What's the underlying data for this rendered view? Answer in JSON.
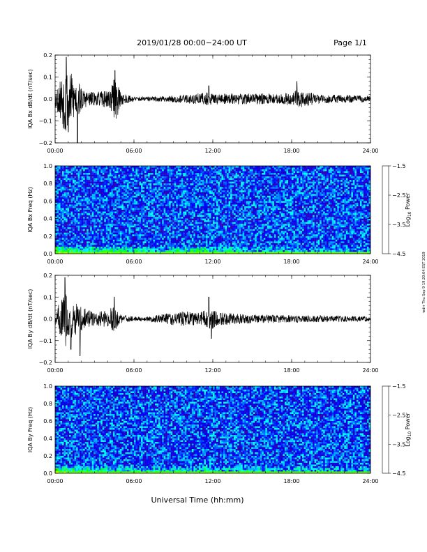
{
  "header": {
    "date_range": "2019/01/28  00:00−24:00 UT",
    "page": "Page 1/1"
  },
  "footer": {
    "xlabel": "Universal Time (hh:mm)"
  },
  "side_note": "wdrr Thu Sep 9 19:20:04 EST 2019",
  "colors": {
    "trace": "#000000",
    "colorscale": [
      "#000000",
      "#4b0082",
      "#0000ff",
      "#00ffff",
      "#00ff00",
      "#ffff00",
      "#ff0000"
    ]
  },
  "chart_data": [
    {
      "id": "bx-timeseries",
      "type": "line",
      "ylabel": "IQA Bx dB/dt (nT/sec)",
      "ylim": [
        -0.2,
        0.2
      ],
      "yticks": [
        "0.2",
        "0.1",
        "0.0",
        "−0.1",
        "−0.2"
      ],
      "xlim": [
        0,
        24
      ],
      "xticks": [
        "00:00",
        "06:00",
        "12:00",
        "18:00",
        "24:00"
      ],
      "envelope": {
        "x_hours": [
          0,
          0.3,
          0.6,
          0.8,
          1.0,
          1.2,
          1.5,
          1.8,
          2.2,
          3.0,
          4.0,
          4.3,
          4.6,
          5.0,
          6.0,
          8.0,
          10.0,
          11.5,
          12.0,
          13.0,
          15.0,
          17.0,
          18.0,
          18.5,
          20.0,
          22.0,
          24.0
        ],
        "amplitude": [
          0.04,
          0.08,
          0.13,
          0.18,
          0.11,
          0.12,
          0.09,
          0.08,
          0.04,
          0.03,
          0.04,
          0.06,
          0.11,
          0.03,
          0.01,
          0.012,
          0.02,
          0.03,
          0.025,
          0.025,
          0.025,
          0.025,
          0.03,
          0.045,
          0.02,
          0.018,
          0.015
        ],
        "spikes": [
          [
            0.85,
            0.19
          ],
          [
            1.0,
            -0.15
          ],
          [
            1.7,
            -0.21
          ],
          [
            4.55,
            0.13
          ],
          [
            11.7,
            0.06
          ],
          [
            18.4,
            0.08
          ]
        ]
      }
    },
    {
      "id": "bx-spectrogram",
      "type": "heatmap",
      "ylabel": "IQA Bx Freq (Hz)",
      "ylim": [
        0.0,
        1.0
      ],
      "yticks": [
        "1.0",
        "0.8",
        "0.6",
        "0.4",
        "0.2",
        "0.0"
      ],
      "xlim": [
        0,
        24
      ],
      "xticks": [
        "00:00",
        "06:00",
        "12:00",
        "18:00",
        "24:00"
      ],
      "colorbar": {
        "label": "Log10 Power",
        "label_base": "Log",
        "label_sub": "10",
        "label_rest": " Power",
        "range": [
          -4.5,
          -1.5
        ],
        "ticks": [
          "−1.5",
          "−2.5",
          "−3.5",
          "−4.5"
        ]
      },
      "background_level": -3.4,
      "low_freq_enhancement": {
        "x_hours": [
          0.5,
          1.0,
          2.0,
          4.3,
          8.0,
          10.0,
          11.5,
          12.0,
          15.0,
          18.5,
          22.0
        ],
        "strength": [
          0.9,
          0.8,
          0.5,
          0.6,
          0.3,
          0.5,
          0.6,
          0.4,
          0.3,
          0.3,
          0.2
        ]
      }
    },
    {
      "id": "by-timeseries",
      "type": "line",
      "ylabel": "IQA By dB/dt (nT/sec)",
      "ylim": [
        -0.2,
        0.2
      ],
      "yticks": [
        "0.2",
        "0.1",
        "0.0",
        "−0.1",
        "−0.2"
      ],
      "xlim": [
        0,
        24
      ],
      "xticks": [
        "00:00",
        "06:00",
        "12:00",
        "18:00",
        "24:00"
      ],
      "envelope": {
        "x_hours": [
          0,
          0.3,
          0.6,
          0.8,
          1.0,
          1.3,
          1.8,
          2.3,
          3.0,
          4.0,
          4.5,
          5.0,
          6.0,
          7.0,
          8.0,
          9.0,
          10.0,
          11.0,
          11.8,
          12.5,
          13.5,
          15.0,
          17.0,
          19.0,
          21.0,
          24.0
        ],
        "amplitude": [
          0.03,
          0.07,
          0.1,
          0.13,
          0.08,
          0.09,
          0.06,
          0.05,
          0.03,
          0.04,
          0.06,
          0.02,
          0.01,
          0.01,
          0.02,
          0.03,
          0.035,
          0.03,
          0.05,
          0.03,
          0.025,
          0.02,
          0.018,
          0.015,
          0.015,
          0.012
        ],
        "spikes": [
          [
            0.75,
            0.19
          ],
          [
            1.2,
            -0.14
          ],
          [
            1.9,
            -0.17
          ],
          [
            4.5,
            0.1
          ],
          [
            11.7,
            0.1
          ],
          [
            11.9,
            -0.09
          ]
        ]
      }
    },
    {
      "id": "by-spectrogram",
      "type": "heatmap",
      "ylabel": "IQA By Freq (Hz)",
      "ylim": [
        0.0,
        1.0
      ],
      "yticks": [
        "1.0",
        "0.8",
        "0.6",
        "0.4",
        "0.2",
        "0.0"
      ],
      "xlim": [
        0,
        24
      ],
      "xticks": [
        "00:00",
        "06:00",
        "12:00",
        "18:00",
        "24:00"
      ],
      "colorbar": {
        "label": "Log10 Power",
        "label_base": "Log",
        "label_sub": "10",
        "label_rest": " Power",
        "range": [
          -4.5,
          -1.5
        ],
        "ticks": [
          "−1.5",
          "−2.5",
          "−3.5",
          "−4.5"
        ]
      },
      "background_level": -3.4,
      "low_freq_enhancement": {
        "x_hours": [
          0.5,
          1.0,
          2.0,
          4.3,
          8.0,
          10.0,
          11.5,
          12.0,
          15.0,
          18.5,
          22.0
        ],
        "strength": [
          0.8,
          0.7,
          0.5,
          0.4,
          0.3,
          0.35,
          0.4,
          0.35,
          0.3,
          0.3,
          0.2
        ]
      }
    }
  ]
}
